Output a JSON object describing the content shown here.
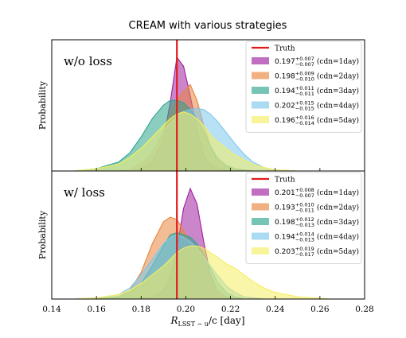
{
  "chart_data": {
    "type": "area",
    "title": "CREAM with various strategies",
    "xlabel_main": "R",
    "xlabel_sub": "LSST − u",
    "xlabel_rest": "/c [day]",
    "ylabel": "Probability",
    "xlim": [
      0.14,
      0.28
    ],
    "xticks": [
      "0.14",
      "0.16",
      "0.18",
      "0.20",
      "0.22",
      "0.24",
      "0.26",
      "0.28"
    ],
    "truth": 0.196,
    "truth_label": "Truth",
    "truth_color": "#e31a1c",
    "x": [
      0.15,
      0.16,
      0.17,
      0.175,
      0.18,
      0.185,
      0.19,
      0.193,
      0.196,
      0.199,
      0.202,
      0.205,
      0.208,
      0.211,
      0.214,
      0.218,
      0.222,
      0.226,
      0.23,
      0.235,
      0.24,
      0.25,
      0.265
    ],
    "panels": [
      {
        "label": "w/o loss",
        "series": [
          {
            "name": "cdn=1day",
            "median": "0.197",
            "plus": "+0.007",
            "minus": "−0.007",
            "suffix": "(cdn=1day)",
            "color": "#a020a0",
            "values": [
              0,
              0,
              0,
              0,
              0.02,
              0.08,
              0.28,
              0.6,
              1.0,
              0.92,
              0.66,
              0.36,
              0.14,
              0.05,
              0.02,
              0.005,
              0,
              0,
              0,
              0,
              0,
              0,
              0
            ]
          },
          {
            "name": "cdn=2day",
            "median": "0.198",
            "plus": "+0.009",
            "minus": "−0.010",
            "suffix": "(cdn=2day)",
            "color": "#e8853e",
            "values": [
              0,
              0,
              0,
              0.01,
              0.06,
              0.16,
              0.34,
              0.52,
              0.62,
              0.7,
              0.76,
              0.62,
              0.4,
              0.22,
              0.1,
              0.04,
              0.01,
              0,
              0,
              0,
              0,
              0,
              0
            ]
          },
          {
            "name": "cdn=3day",
            "median": "0.194",
            "plus": "+0.011",
            "minus": "−0.011",
            "suffix": "(cdn=3day)",
            "color": "#2ca58d",
            "values": [
              0,
              0.02,
              0.08,
              0.16,
              0.3,
              0.46,
              0.58,
              0.62,
              0.62,
              0.6,
              0.54,
              0.46,
              0.34,
              0.22,
              0.12,
              0.05,
              0.02,
              0.01,
              0,
              0,
              0,
              0,
              0
            ]
          },
          {
            "name": "cdn=4day",
            "median": "0.202",
            "plus": "+0.015",
            "minus": "−0.015",
            "suffix": "(cdn=4day)",
            "color": "#7ec8ec",
            "values": [
              0,
              0.01,
              0.04,
              0.08,
              0.16,
              0.26,
              0.36,
              0.42,
              0.48,
              0.52,
              0.54,
              0.55,
              0.54,
              0.5,
              0.44,
              0.34,
              0.24,
              0.15,
              0.08,
              0.03,
              0.01,
              0,
              0
            ]
          },
          {
            "name": "cdn=5day",
            "median": "0.196",
            "plus": "+0.016",
            "minus": "−0.014",
            "suffix": "(cdn=5day)",
            "color": "#f5ee62",
            "values": [
              0,
              0.02,
              0.06,
              0.12,
              0.2,
              0.3,
              0.4,
              0.46,
              0.5,
              0.52,
              0.5,
              0.46,
              0.4,
              0.32,
              0.26,
              0.2,
              0.14,
              0.1,
              0.06,
              0.03,
              0.01,
              0,
              0
            ]
          }
        ]
      },
      {
        "label": "w/ loss",
        "series": [
          {
            "name": "cdn=1day",
            "median": "0.201",
            "plus": "+0.008",
            "minus": "−0.007",
            "suffix": "(cdn=1day)",
            "color": "#a020a0",
            "values": [
              0,
              0,
              0,
              0,
              0,
              0.02,
              0.08,
              0.2,
              0.45,
              0.82,
              1.0,
              0.86,
              0.52,
              0.22,
              0.08,
              0.02,
              0,
              0,
              0,
              0,
              0,
              0,
              0
            ]
          },
          {
            "name": "cdn=2day",
            "median": "0.193",
            "plus": "+0.010",
            "minus": "−0.011",
            "suffix": "(cdn=2day)",
            "color": "#e8853e",
            "values": [
              0,
              0,
              0.02,
              0.08,
              0.24,
              0.5,
              0.7,
              0.74,
              0.72,
              0.62,
              0.52,
              0.42,
              0.3,
              0.18,
              0.08,
              0.02,
              0,
              0,
              0,
              0,
              0,
              0,
              0
            ]
          },
          {
            "name": "cdn=3day",
            "median": "0.198",
            "plus": "+0.012",
            "minus": "−0.013",
            "suffix": "(cdn=3day)",
            "color": "#2ca58d",
            "values": [
              0,
              0,
              0.02,
              0.06,
              0.14,
              0.3,
              0.48,
              0.58,
              0.6,
              0.58,
              0.56,
              0.5,
              0.4,
              0.28,
              0.16,
              0.06,
              0.02,
              0,
              0,
              0,
              0,
              0,
              0
            ]
          },
          {
            "name": "cdn=4day",
            "median": "0.194",
            "plus": "+0.014",
            "minus": "−0.013",
            "suffix": "(cdn=4day)",
            "color": "#7ec8ec",
            "values": [
              0,
              0.01,
              0.04,
              0.1,
              0.22,
              0.36,
              0.5,
              0.56,
              0.58,
              0.56,
              0.52,
              0.46,
              0.38,
              0.3,
              0.22,
              0.12,
              0.06,
              0.02,
              0.01,
              0,
              0,
              0,
              0
            ]
          },
          {
            "name": "cdn=5day",
            "median": "0.203",
            "plus": "+0.019",
            "minus": "−0.017",
            "suffix": "(cdn=5day)",
            "color": "#f5ee62",
            "values": [
              0,
              0.01,
              0.04,
              0.08,
              0.14,
              0.22,
              0.3,
              0.36,
              0.42,
              0.46,
              0.48,
              0.48,
              0.46,
              0.42,
              0.38,
              0.32,
              0.28,
              0.22,
              0.16,
              0.1,
              0.06,
              0.02,
              0
            ]
          }
        ]
      }
    ]
  }
}
